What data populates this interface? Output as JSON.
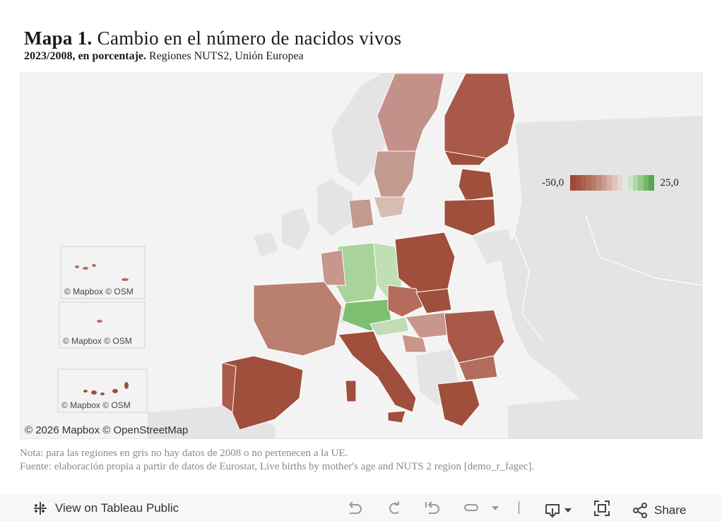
{
  "header": {
    "title_bold": "Mapa 1.",
    "title_rest": "Cambio en el número de nacidos vivos",
    "subtitle_bold": "2023/2008, en porcentaje.",
    "subtitle_rest": "Regiones NUTS2, Unión Europea"
  },
  "legend": {
    "min_label": "-50,0",
    "max_label": "25,0",
    "min_value": -50,
    "max_value": 25,
    "colors": [
      "#9e4a39",
      "#a45442",
      "#aa604d",
      "#b06d5a",
      "#b77b69",
      "#bf8c7c",
      "#c99c8f",
      "#d4b0a6",
      "#dfc4bd",
      "#e8d6d1",
      "#e1e9dd",
      "#cfe3c7",
      "#b4d7aa",
      "#94c98a",
      "#72b868",
      "#5aa552"
    ]
  },
  "map": {
    "attribution": "© 2026 Mapbox  © OpenStreetMap",
    "colors": {
      "land_other": "#e4e4e4",
      "sea": "#f3f3f3",
      "strong_decline": "#a04f3d",
      "decline": "#b46d5c",
      "mild_decline": "#c8968a",
      "slight_decline": "#dbbdb5",
      "growth": "#a8d49b",
      "strong_growth": "#7fbf72"
    },
    "insets": [
      {
        "attribution": "© Mapbox  © OSM"
      },
      {
        "attribution": "© Mapbox  © OSM"
      },
      {
        "attribution": "© Mapbox  © OSM"
      }
    ]
  },
  "notes": {
    "nota": "Nota: para las regiones en gris no hay datos de 2008 o no pertenecen a la UE.",
    "fuente": "Fuente: elaboración propia a partir de datos de Eurostat, Live births by mother's age and NUTS 2 region [demo_r_fagec]."
  },
  "toolbar": {
    "view_label": "View on Tableau Public",
    "share_label": "Share",
    "icons": [
      "tableau-logo-icon",
      "undo-icon",
      "redo-icon",
      "revert-icon",
      "pause-icon",
      "chevron-down-icon",
      "download-icon",
      "fullscreen-icon",
      "share-icon"
    ]
  }
}
